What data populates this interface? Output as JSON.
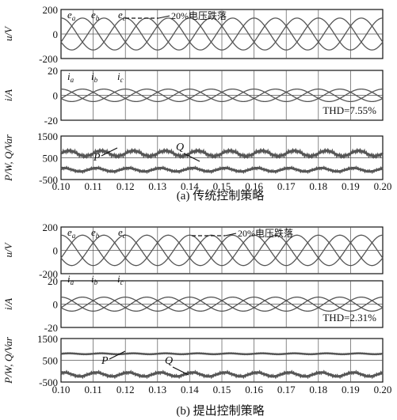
{
  "figure": {
    "caption_a": "(a) 传统控制策略",
    "caption_b": "(b) 提出控制策略"
  },
  "chart_data": [
    {
      "id": "a-voltage",
      "type": "line",
      "ylabel": "u/V",
      "xlim": [
        0.1,
        0.2
      ],
      "ylim": [
        -200,
        200
      ],
      "yticks": [
        200,
        0,
        -200
      ],
      "grid": true,
      "series_labels": [
        "e",
        "e",
        "e"
      ],
      "series_subscripts": [
        "a",
        "b",
        "c"
      ],
      "annotation": "20%电压跌落",
      "waveform": {
        "shape": "three-phase sine",
        "amplitude": 130,
        "frequency_hz": 50,
        "phase_deg": [
          90,
          -30,
          210
        ]
      }
    },
    {
      "id": "a-current",
      "type": "line",
      "ylabel": "i/A",
      "xlim": [
        0.1,
        0.2
      ],
      "ylim": [
        -20,
        20
      ],
      "yticks": [
        20,
        0,
        -20
      ],
      "grid": true,
      "series_labels": [
        "i",
        "i",
        "i"
      ],
      "series_subscripts": [
        "a",
        "b",
        "c"
      ],
      "annotation": "THD=7.55%",
      "waveform": {
        "shape": "three-phase sine",
        "amplitude": 5,
        "frequency_hz": 50,
        "phase_deg": [
          90,
          -30,
          210
        ]
      }
    },
    {
      "id": "a-power",
      "type": "line",
      "ylabel": "P/W, Q/Var",
      "xlim": [
        0.1,
        0.2
      ],
      "ylim": [
        -500,
        1500
      ],
      "yticks": [
        1500,
        500,
        -500
      ],
      "grid": true,
      "xticks": [
        "0.10",
        "0.11",
        "0.12",
        "0.13",
        "0.14",
        "0.15",
        "0.16",
        "0.17",
        "0.18",
        "0.19",
        "0.20"
      ],
      "series": [
        {
          "name": "P",
          "mean": 700,
          "ripple": 250,
          "ripple_hz": 100
        },
        {
          "name": "Q",
          "mean": -50,
          "ripple": 160,
          "ripple_hz": 100
        }
      ]
    },
    {
      "id": "b-voltage",
      "type": "line",
      "ylabel": "u/V",
      "xlim": [
        0.1,
        0.2
      ],
      "ylim": [
        -200,
        200
      ],
      "yticks": [
        200,
        0,
        -200
      ],
      "grid": true,
      "series_labels": [
        "e",
        "e",
        "e"
      ],
      "series_subscripts": [
        "a",
        "b",
        "c"
      ],
      "annotation": "20%电压跌落",
      "waveform": {
        "shape": "three-phase sine",
        "amplitude": 130,
        "frequency_hz": 50,
        "phase_deg": [
          90,
          -30,
          210
        ]
      }
    },
    {
      "id": "b-current",
      "type": "line",
      "ylabel": "i/A",
      "xlim": [
        0.1,
        0.2
      ],
      "ylim": [
        -20,
        20
      ],
      "yticks": [
        20,
        0,
        -20
      ],
      "grid": true,
      "series_labels": [
        "i",
        "i",
        "i"
      ],
      "series_subscripts": [
        "a",
        "b",
        "c"
      ],
      "annotation": "THD=2.31%",
      "waveform": {
        "shape": "three-phase sine",
        "amplitude": 6,
        "frequency_hz": 50,
        "phase_deg": [
          90,
          -30,
          210
        ]
      }
    },
    {
      "id": "b-power",
      "type": "line",
      "ylabel": "P/W, Q/Var",
      "xlim": [
        0.1,
        0.2
      ],
      "ylim": [
        -500,
        1500
      ],
      "yticks": [
        1500,
        500,
        -500
      ],
      "grid": true,
      "xticks": [
        "0.10",
        "0.11",
        "0.12",
        "0.13",
        "0.14",
        "0.15",
        "0.16",
        "0.17",
        "0.18",
        "0.19",
        "0.20"
      ],
      "series": [
        {
          "name": "P",
          "mean": 800,
          "ripple": 40,
          "ripple_hz": 100
        },
        {
          "name": "Q",
          "mean": -150,
          "ripple": 180,
          "ripple_hz": 100
        }
      ]
    }
  ]
}
